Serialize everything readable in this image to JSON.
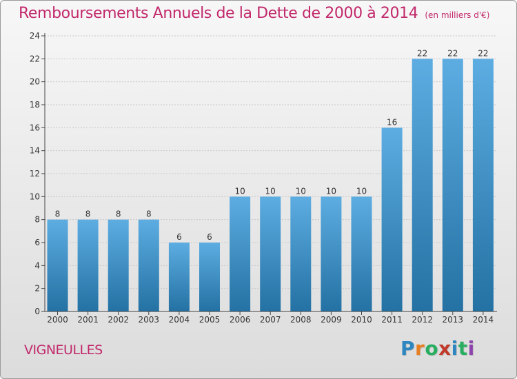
{
  "title": "Remboursements Annuels de la Dette de 2000 à 2014",
  "subtitle": "(en milliers d'€)",
  "commune": "VIGNEULLES",
  "logo": {
    "letters": [
      "P",
      "r",
      "o",
      "x",
      "i",
      "t",
      "i"
    ],
    "colors": [
      "#2e86c1",
      "#e67e22",
      "#27ae60",
      "#c0392b",
      "#2e86c1",
      "#27ae60",
      "#8e44ad"
    ]
  },
  "colors": {
    "bar_top": "#5dade2",
    "bar_bottom": "#2471a3",
    "title": "#c2286b",
    "grid": "#c8c8c8"
  },
  "chart_data": {
    "type": "bar",
    "categories": [
      "2000",
      "2001",
      "2002",
      "2003",
      "2004",
      "2005",
      "2006",
      "2007",
      "2008",
      "2009",
      "2010",
      "2011",
      "2012",
      "2013",
      "2014"
    ],
    "values": [
      8,
      8,
      8,
      8,
      6,
      6,
      10,
      10,
      10,
      10,
      10,
      16,
      22,
      22,
      22
    ],
    "ylim": [
      0,
      24
    ],
    "yticks": [
      0,
      2,
      4,
      6,
      8,
      10,
      12,
      14,
      16,
      18,
      20,
      22,
      24
    ],
    "grid": true,
    "data_labels": true
  }
}
